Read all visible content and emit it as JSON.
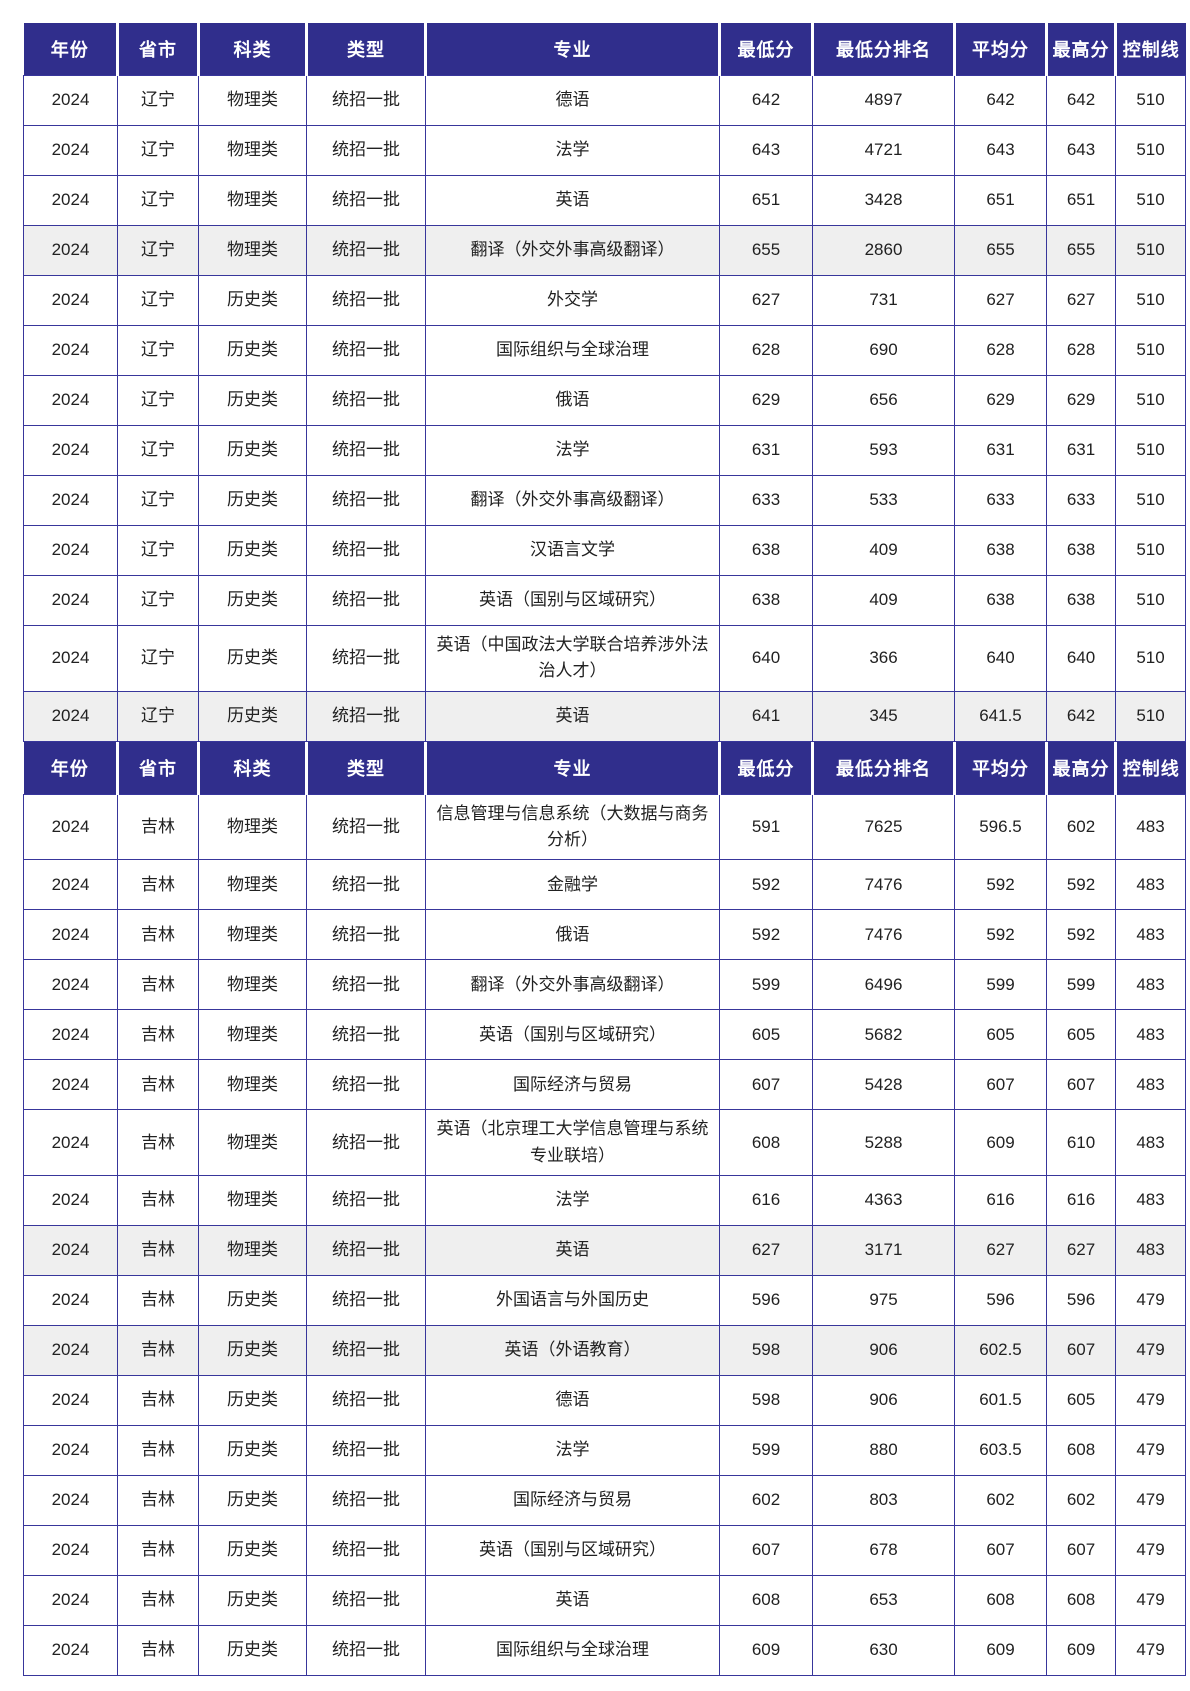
{
  "colors": {
    "header_bg": "#302E8C",
    "header_text": "#FFFFFF",
    "border": "#38369B",
    "body_text": "#212121",
    "shaded_row": "#EFEFEF"
  },
  "columns": [
    "年份",
    "省市",
    "科类",
    "类型",
    "专业",
    "最低分",
    "最低分排名",
    "平均分",
    "最高分",
    "控制线"
  ],
  "tables": [
    {
      "id": "liaoning",
      "province": "辽宁",
      "rows": [
        {
          "shaded": false,
          "cells": [
            "2024",
            "辽宁",
            "物理类",
            "统招一批",
            "德语",
            "642",
            "4897",
            "642",
            "642",
            "510"
          ]
        },
        {
          "shaded": false,
          "cells": [
            "2024",
            "辽宁",
            "物理类",
            "统招一批",
            "法学",
            "643",
            "4721",
            "643",
            "643",
            "510"
          ]
        },
        {
          "shaded": false,
          "cells": [
            "2024",
            "辽宁",
            "物理类",
            "统招一批",
            "英语",
            "651",
            "3428",
            "651",
            "651",
            "510"
          ]
        },
        {
          "shaded": true,
          "cells": [
            "2024",
            "辽宁",
            "物理类",
            "统招一批",
            "翻译（外交外事高级翻译）",
            "655",
            "2860",
            "655",
            "655",
            "510"
          ]
        },
        {
          "shaded": false,
          "cells": [
            "2024",
            "辽宁",
            "历史类",
            "统招一批",
            "外交学",
            "627",
            "731",
            "627",
            "627",
            "510"
          ]
        },
        {
          "shaded": false,
          "cells": [
            "2024",
            "辽宁",
            "历史类",
            "统招一批",
            "国际组织与全球治理",
            "628",
            "690",
            "628",
            "628",
            "510"
          ]
        },
        {
          "shaded": false,
          "cells": [
            "2024",
            "辽宁",
            "历史类",
            "统招一批",
            "俄语",
            "629",
            "656",
            "629",
            "629",
            "510"
          ]
        },
        {
          "shaded": false,
          "cells": [
            "2024",
            "辽宁",
            "历史类",
            "统招一批",
            "法学",
            "631",
            "593",
            "631",
            "631",
            "510"
          ]
        },
        {
          "shaded": false,
          "cells": [
            "2024",
            "辽宁",
            "历史类",
            "统招一批",
            "翻译（外交外事高级翻译）",
            "633",
            "533",
            "633",
            "633",
            "510"
          ]
        },
        {
          "shaded": false,
          "cells": [
            "2024",
            "辽宁",
            "历史类",
            "统招一批",
            "汉语言文学",
            "638",
            "409",
            "638",
            "638",
            "510"
          ]
        },
        {
          "shaded": false,
          "cells": [
            "2024",
            "辽宁",
            "历史类",
            "统招一批",
            "英语（国别与区域研究）",
            "638",
            "409",
            "638",
            "638",
            "510"
          ]
        },
        {
          "shaded": false,
          "cells": [
            "2024",
            "辽宁",
            "历史类",
            "统招一批",
            "英语（中国政法大学联合培养涉外法治人才）",
            "640",
            "366",
            "640",
            "640",
            "510"
          ]
        },
        {
          "shaded": true,
          "cells": [
            "2024",
            "辽宁",
            "历史类",
            "统招一批",
            "英语",
            "641",
            "345",
            "641.5",
            "642",
            "510"
          ]
        }
      ]
    },
    {
      "id": "jilin",
      "province": "吉林",
      "rows": [
        {
          "shaded": false,
          "cells": [
            "2024",
            "吉林",
            "物理类",
            "统招一批",
            "信息管理与信息系统（大数据与商务分析）",
            "591",
            "7625",
            "596.5",
            "602",
            "483"
          ]
        },
        {
          "shaded": false,
          "cells": [
            "2024",
            "吉林",
            "物理类",
            "统招一批",
            "金融学",
            "592",
            "7476",
            "592",
            "592",
            "483"
          ]
        },
        {
          "shaded": false,
          "cells": [
            "2024",
            "吉林",
            "物理类",
            "统招一批",
            "俄语",
            "592",
            "7476",
            "592",
            "592",
            "483"
          ]
        },
        {
          "shaded": false,
          "cells": [
            "2024",
            "吉林",
            "物理类",
            "统招一批",
            "翻译（外交外事高级翻译）",
            "599",
            "6496",
            "599",
            "599",
            "483"
          ]
        },
        {
          "shaded": false,
          "cells": [
            "2024",
            "吉林",
            "物理类",
            "统招一批",
            "英语（国别与区域研究）",
            "605",
            "5682",
            "605",
            "605",
            "483"
          ]
        },
        {
          "shaded": false,
          "cells": [
            "2024",
            "吉林",
            "物理类",
            "统招一批",
            "国际经济与贸易",
            "607",
            "5428",
            "607",
            "607",
            "483"
          ]
        },
        {
          "shaded": false,
          "cells": [
            "2024",
            "吉林",
            "物理类",
            "统招一批",
            "英语（北京理工大学信息管理与系统专业联培）",
            "608",
            "5288",
            "609",
            "610",
            "483"
          ]
        },
        {
          "shaded": false,
          "cells": [
            "2024",
            "吉林",
            "物理类",
            "统招一批",
            "法学",
            "616",
            "4363",
            "616",
            "616",
            "483"
          ]
        },
        {
          "shaded": true,
          "cells": [
            "2024",
            "吉林",
            "物理类",
            "统招一批",
            "英语",
            "627",
            "3171",
            "627",
            "627",
            "483"
          ]
        },
        {
          "shaded": false,
          "cells": [
            "2024",
            "吉林",
            "历史类",
            "统招一批",
            "外国语言与外国历史",
            "596",
            "975",
            "596",
            "596",
            "479"
          ]
        },
        {
          "shaded": true,
          "cells": [
            "2024",
            "吉林",
            "历史类",
            "统招一批",
            "英语（外语教育）",
            "598",
            "906",
            "602.5",
            "607",
            "479"
          ]
        },
        {
          "shaded": false,
          "cells": [
            "2024",
            "吉林",
            "历史类",
            "统招一批",
            "德语",
            "598",
            "906",
            "601.5",
            "605",
            "479"
          ]
        },
        {
          "shaded": false,
          "cells": [
            "2024",
            "吉林",
            "历史类",
            "统招一批",
            "法学",
            "599",
            "880",
            "603.5",
            "608",
            "479"
          ]
        },
        {
          "shaded": false,
          "cells": [
            "2024",
            "吉林",
            "历史类",
            "统招一批",
            "国际经济与贸易",
            "602",
            "803",
            "602",
            "602",
            "479"
          ]
        },
        {
          "shaded": false,
          "cells": [
            "2024",
            "吉林",
            "历史类",
            "统招一批",
            "英语（国别与区域研究）",
            "607",
            "678",
            "607",
            "607",
            "479"
          ]
        },
        {
          "shaded": false,
          "cells": [
            "2024",
            "吉林",
            "历史类",
            "统招一批",
            "英语",
            "608",
            "653",
            "608",
            "608",
            "479"
          ]
        },
        {
          "shaded": false,
          "cells": [
            "2024",
            "吉林",
            "历史类",
            "统招一批",
            "国际组织与全球治理",
            "609",
            "630",
            "609",
            "609",
            "479"
          ]
        }
      ]
    }
  ]
}
